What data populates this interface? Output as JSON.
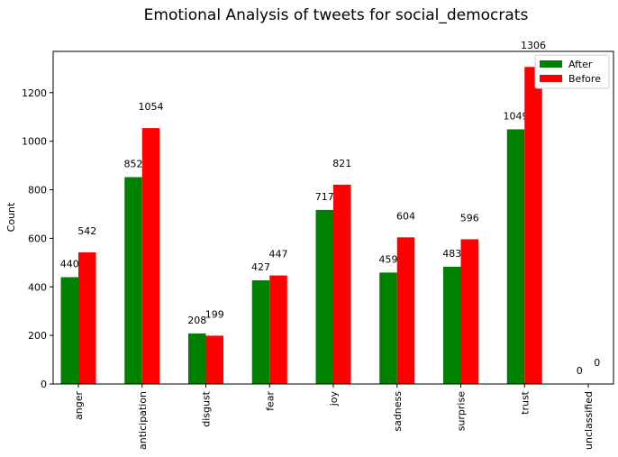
{
  "chart_data": {
    "type": "bar",
    "title": "Emotional Analysis of tweets for social_democrats",
    "xlabel": "",
    "ylabel": "Count",
    "ylim": [
      0,
      1370
    ],
    "yticks": [
      0,
      200,
      400,
      600,
      800,
      1000,
      1200
    ],
    "categories": [
      "anger",
      "anticipation",
      "disgust",
      "fear",
      "joy",
      "sadness",
      "surprise",
      "trust",
      "unclassified"
    ],
    "series": [
      {
        "name": "After",
        "color": "#008000",
        "values": [
          440,
          852,
          208,
          427,
          717,
          459,
          483,
          1049,
          0
        ]
      },
      {
        "name": "Before",
        "color": "#ff0000",
        "values": [
          542,
          1054,
          199,
          447,
          821,
          604,
          596,
          1306,
          0
        ]
      }
    ],
    "legend_position": "top-right",
    "grid": false
  }
}
